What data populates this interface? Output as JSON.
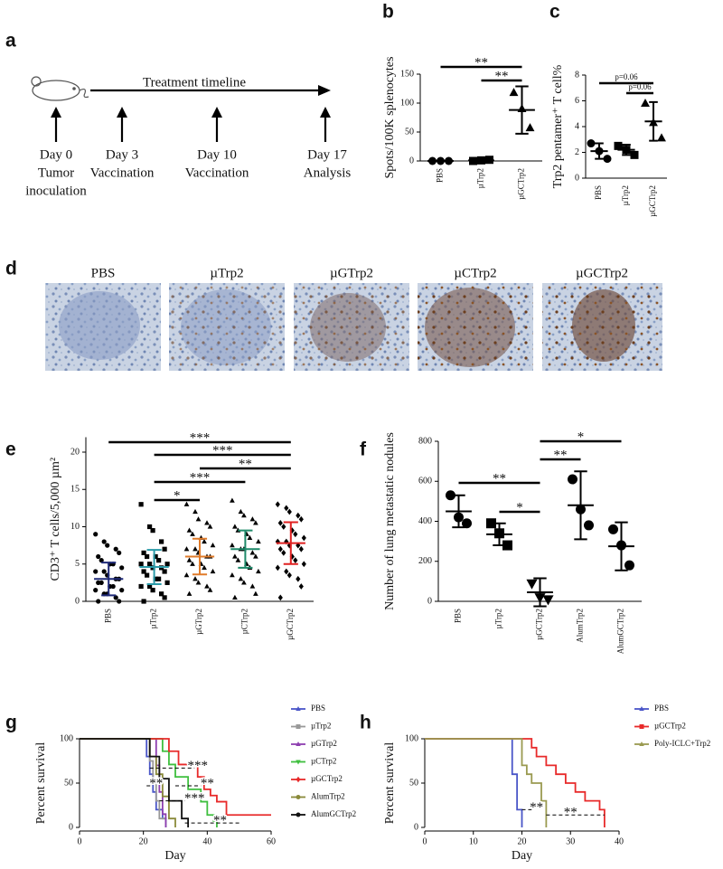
{
  "figure": {
    "timeline": {
      "panel": "a",
      "title": "Treatment timeline",
      "events": [
        {
          "day": "Day 0",
          "lines": [
            "Tumor",
            "inoculation"
          ]
        },
        {
          "day": "Day 3",
          "lines": [
            "Vaccination"
          ]
        },
        {
          "day": "Day 10",
          "lines": [
            "Vaccination"
          ]
        },
        {
          "day": "Day 17",
          "lines": [
            "Analysis"
          ]
        }
      ]
    },
    "images": {
      "panel": "d",
      "labels": [
        "PBS",
        "µTrp2",
        "µGTrp2",
        "µCTrp2",
        "µGCTrp2"
      ]
    }
  },
  "chart_data": [
    {
      "type": "dot",
      "panel": "b",
      "ylabel": "Spots/100K splenocytes",
      "categories": [
        "PBS",
        "µTrp2",
        "µGCTrp2"
      ],
      "points": [
        [
          0,
          0,
          0
        ],
        [
          0,
          1,
          2
        ],
        [
          118,
          90,
          57
        ]
      ],
      "mean": [
        0,
        1,
        88
      ],
      "sd": [
        0,
        1,
        41
      ],
      "markers": [
        "circle",
        "square",
        "triangle"
      ],
      "marker_color": "#000000",
      "errorbar_color": "#000000",
      "ylim": [
        0,
        150
      ],
      "yticks": [
        0,
        50,
        100,
        150
      ],
      "comparisons": [
        {
          "groups": [
            0,
            2
          ],
          "label": "**"
        },
        {
          "groups": [
            1,
            2
          ],
          "label": "**"
        }
      ]
    },
    {
      "type": "dot",
      "panel": "c",
      "ylabel": "Trp2 pentamer⁺ T cell%",
      "categories": [
        "PBS",
        "µTrp2",
        "µGCTrp2"
      ],
      "points": [
        [
          2.7,
          2.1,
          1.5
        ],
        [
          2.5,
          2.2,
          1.8
        ],
        [
          5.8,
          4.3,
          3.1
        ]
      ],
      "mean": [
        2.1,
        2.2,
        4.4
      ],
      "sd": [
        0.6,
        0.4,
        1.5
      ],
      "markers": [
        "circle",
        "square",
        "triangle"
      ],
      "marker_color": "#000000",
      "errorbar_color": "#000000",
      "ylim": [
        0,
        8
      ],
      "yticks": [
        0,
        2,
        4,
        6,
        8
      ],
      "comparisons": [
        {
          "groups": [
            0,
            2
          ],
          "label": "p=0.06"
        },
        {
          "groups": [
            1,
            2
          ],
          "label": "p=0.06"
        }
      ]
    },
    {
      "type": "dot",
      "panel": "e",
      "ylabel": "CD3⁺ T cells/5,000 µm²",
      "categories": [
        "PBS",
        "µTrp2",
        "µGTrp2",
        "µCTrp2",
        "µGCTrp2"
      ],
      "points": [
        [
          9,
          8,
          7.5,
          7,
          6.5,
          6,
          5.5,
          5,
          5,
          4.5,
          4,
          4,
          3.5,
          3,
          3,
          2.5,
          2.5,
          2,
          2,
          1.5,
          1.5,
          1,
          1,
          0.5,
          0,
          0
        ],
        [
          13,
          10,
          9.5,
          8,
          7,
          6.5,
          6,
          6,
          5.5,
          5,
          5,
          5,
          4.5,
          4.5,
          4,
          4,
          3.5,
          3,
          3,
          2.5,
          2,
          2,
          1.5,
          1,
          0.5,
          0
        ],
        [
          13,
          12,
          11,
          10.5,
          10,
          9.5,
          9,
          8.5,
          8,
          7.5,
          7,
          7,
          6.5,
          6,
          6,
          5.5,
          5,
          5,
          4.5,
          4,
          3.5,
          3,
          2.5,
          2,
          1.5,
          1
        ],
        [
          13.5,
          12,
          11.5,
          11,
          10.5,
          10,
          9.5,
          9,
          8.5,
          8,
          7.5,
          7,
          7,
          6.5,
          6,
          6,
          5.5,
          5,
          4.5,
          4,
          3.5,
          3,
          2.5,
          2,
          1,
          0.5
        ],
        [
          13,
          12.5,
          12,
          11.5,
          11,
          10.5,
          10,
          9.5,
          9,
          8.5,
          8,
          8,
          7.5,
          7.5,
          7,
          7,
          6.5,
          6,
          5.5,
          5,
          4.5,
          4,
          3.5,
          3,
          2,
          0.5
        ]
      ],
      "mean": [
        3.0,
        4.6,
        6.0,
        7.0,
        7.8
      ],
      "sd": [
        2.2,
        2.3,
        2.4,
        2.5,
        2.8
      ],
      "markers": [
        "circle",
        "square",
        "triangle",
        "triangle",
        "diamond"
      ],
      "marker_color": "#000000",
      "errorbar_colors": [
        "#1f2a78",
        "#2a9aa8",
        "#e07b2a",
        "#1e8a6a",
        "#e02020"
      ],
      "ylim": [
        0,
        22
      ],
      "yticks": [
        0,
        5,
        10,
        15,
        20
      ],
      "comparisons": [
        {
          "groups": [
            0,
            4
          ],
          "label": "***"
        },
        {
          "groups": [
            1,
            4
          ],
          "label": "***"
        },
        {
          "groups": [
            2,
            4
          ],
          "label": "**"
        },
        {
          "groups": [
            1,
            3
          ],
          "label": "***"
        },
        {
          "groups": [
            1,
            2
          ],
          "label": "*"
        }
      ]
    },
    {
      "type": "dot",
      "panel": "f",
      "ylabel": "Number of lung metastatic nodules",
      "categories": [
        "PBS",
        "µTrp2",
        "µGCTrp2",
        "AlumTrp2",
        "AlumGCTrp2"
      ],
      "points": [
        [
          530,
          420,
          390
        ],
        [
          390,
          340,
          280
        ],
        [
          90,
          20,
          10
        ],
        [
          610,
          460,
          380
        ],
        [
          360,
          280,
          180
        ]
      ],
      "mean": [
        450,
        335,
        45,
        480,
        275
      ],
      "sd": [
        80,
        55,
        70,
        170,
        120
      ],
      "markers": [
        "circle",
        "square",
        "triangle-down",
        "circle",
        "circle"
      ],
      "marker_color": "#000000",
      "errorbar_color": "#000000",
      "ylim": [
        0,
        800
      ],
      "yticks": [
        0,
        200,
        400,
        600,
        800
      ],
      "comparisons": [
        {
          "groups": [
            2,
            4
          ],
          "label": "*"
        },
        {
          "groups": [
            2,
            3
          ],
          "label": "**"
        },
        {
          "groups": [
            0,
            2
          ],
          "label": "**"
        },
        {
          "groups": [
            1,
            2
          ],
          "label": "*"
        }
      ]
    },
    {
      "type": "survival",
      "panel": "g",
      "xlabel": "Day",
      "ylabel": "Percent survival",
      "xlim": [
        0,
        60
      ],
      "xticks": [
        0,
        20,
        40,
        60
      ],
      "ylim": [
        0,
        100
      ],
      "yticks": [
        0,
        50,
        100
      ],
      "legend": "right",
      "series": [
        {
          "name": "PBS",
          "color": "#4a56c8",
          "marker": "triangle",
          "x": [
            0,
            21,
            22,
            23,
            24,
            26,
            27
          ],
          "values": [
            100,
            80,
            60,
            40,
            20,
            10,
            0
          ]
        },
        {
          "name": "µTrp2",
          "color": "#999999",
          "marker": "square",
          "x": [
            0,
            22,
            23,
            24,
            25,
            27
          ],
          "values": [
            100,
            75,
            50,
            30,
            10,
            0
          ]
        },
        {
          "name": "µGTrp2",
          "color": "#8e3fb0",
          "marker": "triangle",
          "x": [
            0,
            24,
            25,
            26,
            27
          ],
          "values": [
            100,
            70,
            40,
            15,
            0
          ]
        },
        {
          "name": "µCTrp2",
          "color": "#3fbf3f",
          "marker": "triangle-down",
          "x": [
            0,
            26,
            28,
            30,
            34,
            38,
            40,
            42,
            43
          ],
          "values": [
            100,
            86,
            71,
            57,
            43,
            29,
            14,
            7,
            0
          ]
        },
        {
          "name": "µGCTrp2",
          "color": "#e82a2a",
          "marker": "diamond",
          "x": [
            0,
            28,
            31,
            37,
            39,
            41,
            43,
            46,
            60
          ],
          "values": [
            100,
            86,
            71,
            57,
            43,
            36,
            29,
            14,
            14
          ]
        },
        {
          "name": "AlumTrp2",
          "color": "#8a8a3a",
          "marker": "circle",
          "x": [
            0,
            22,
            24,
            26,
            28,
            30
          ],
          "values": [
            100,
            80,
            60,
            35,
            10,
            0
          ]
        },
        {
          "name": "AlumGCTrp2",
          "color": "#111111",
          "marker": "circle",
          "x": [
            0,
            22,
            25,
            28,
            32,
            34
          ],
          "values": [
            100,
            80,
            55,
            30,
            10,
            0
          ]
        }
      ],
      "annotations": [
        "***",
        "**",
        "**",
        "***",
        "**"
      ]
    },
    {
      "type": "survival",
      "panel": "h",
      "xlabel": "Day",
      "ylabel": "Percent survival",
      "xlim": [
        0,
        40
      ],
      "xticks": [
        0,
        10,
        20,
        30,
        40
      ],
      "ylim": [
        0,
        100
      ],
      "yticks": [
        0,
        50,
        100
      ],
      "legend": "right",
      "series": [
        {
          "name": "PBS",
          "color": "#4a56c8",
          "marker": "triangle",
          "x": [
            0,
            18,
            19,
            20
          ],
          "values": [
            100,
            60,
            20,
            0
          ]
        },
        {
          "name": "µGCTrp2",
          "color": "#e82a2a",
          "marker": "square",
          "x": [
            0,
            22,
            23,
            25,
            27,
            29,
            31,
            33,
            36,
            37
          ],
          "values": [
            100,
            90,
            80,
            70,
            60,
            50,
            40,
            30,
            20,
            0
          ]
        },
        {
          "name": "Poly-ICLC+Trp2",
          "color": "#9a9a50",
          "marker": "triangle",
          "x": [
            0,
            20,
            21,
            22,
            24,
            25
          ],
          "values": [
            100,
            70,
            60,
            50,
            30,
            0
          ]
        }
      ],
      "annotations": [
        "**",
        "**"
      ]
    }
  ]
}
